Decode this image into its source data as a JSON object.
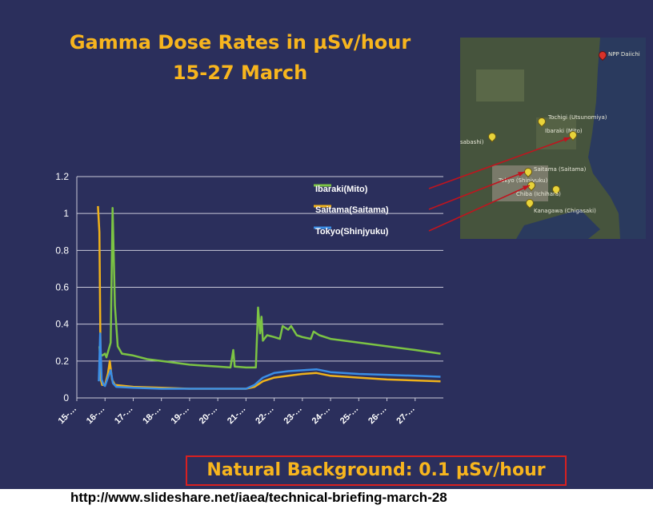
{
  "slide": {
    "title_line1": "Gamma Dose Rates in µSv/hour",
    "title_line2": "15-27 March",
    "callout": "Natural Background: 0.1 µSv/hour",
    "source_url": "http://www.slideshare.net/iaea/technical-briefing-march-28"
  },
  "map": {
    "labels": [
      {
        "id": "npp",
        "text": "NPP Daiichi"
      },
      {
        "id": "tochigi",
        "text": "Tochigi (Utsunomiya)"
      },
      {
        "id": "ibaraki",
        "text": "Ibaraki (Mito)"
      },
      {
        "id": "sabashi",
        "text": "sabashi)"
      },
      {
        "id": "saitama",
        "text": "Saitama (Saitama)"
      },
      {
        "id": "tokyo",
        "text": "Tokyo (Shinjyuku)"
      },
      {
        "id": "chiba",
        "text": "Chiba (Ichihara)"
      },
      {
        "id": "kanagawa",
        "text": "Kanagawa (Chigasaki)"
      }
    ]
  },
  "chart_data": {
    "type": "line",
    "title": "",
    "xlabel": "",
    "ylabel": "",
    "ylim": [
      0,
      1.2
    ],
    "yticks": [
      "0",
      "0.2",
      "0.4",
      "0.6",
      "0.8",
      "1",
      "1.2"
    ],
    "xticks": [
      "15-…",
      "16-…",
      "17-…",
      "18-…",
      "19-…",
      "20-…",
      "21-…",
      "22-…",
      "23-…",
      "24-…",
      "25-…",
      "26-…",
      "27-…"
    ],
    "grid": true,
    "legend_position": "top-right",
    "series": [
      {
        "name": "Ibaraki(Mito)",
        "color": "#7cc444",
        "points": [
          [
            15.8,
            0.28
          ],
          [
            15.82,
            0.24
          ],
          [
            15.9,
            0.23
          ],
          [
            16.0,
            0.24
          ],
          [
            16.05,
            0.22
          ],
          [
            16.2,
            0.3
          ],
          [
            16.27,
            1.03
          ],
          [
            16.35,
            0.5
          ],
          [
            16.45,
            0.28
          ],
          [
            16.6,
            0.24
          ],
          [
            17.0,
            0.23
          ],
          [
            17.5,
            0.21
          ],
          [
            18.0,
            0.2
          ],
          [
            19.0,
            0.18
          ],
          [
            20.0,
            0.17
          ],
          [
            20.45,
            0.165
          ],
          [
            20.55,
            0.26
          ],
          [
            20.6,
            0.17
          ],
          [
            21.0,
            0.165
          ],
          [
            21.35,
            0.165
          ],
          [
            21.43,
            0.49
          ],
          [
            21.5,
            0.35
          ],
          [
            21.55,
            0.44
          ],
          [
            21.6,
            0.31
          ],
          [
            21.75,
            0.34
          ],
          [
            22.0,
            0.33
          ],
          [
            22.2,
            0.32
          ],
          [
            22.3,
            0.39
          ],
          [
            22.5,
            0.37
          ],
          [
            22.6,
            0.39
          ],
          [
            22.8,
            0.34
          ],
          [
            23.0,
            0.33
          ],
          [
            23.3,
            0.32
          ],
          [
            23.4,
            0.36
          ],
          [
            23.6,
            0.34
          ],
          [
            24.0,
            0.32
          ],
          [
            25.0,
            0.3
          ],
          [
            26.0,
            0.28
          ],
          [
            27.0,
            0.26
          ],
          [
            27.9,
            0.24
          ]
        ]
      },
      {
        "name": "Saitama(Saitama)",
        "color": "#f0b21a",
        "points": [
          [
            15.75,
            1.04
          ],
          [
            15.8,
            0.9
          ],
          [
            15.85,
            0.1
          ],
          [
            15.9,
            0.07
          ],
          [
            16.0,
            0.07
          ],
          [
            16.1,
            0.13
          ],
          [
            16.17,
            0.2
          ],
          [
            16.25,
            0.1
          ],
          [
            16.35,
            0.07
          ],
          [
            17.0,
            0.06
          ],
          [
            18.0,
            0.055
          ],
          [
            19.0,
            0.05
          ],
          [
            20.0,
            0.05
          ],
          [
            21.0,
            0.05
          ],
          [
            21.3,
            0.06
          ],
          [
            21.6,
            0.09
          ],
          [
            22.0,
            0.11
          ],
          [
            22.5,
            0.12
          ],
          [
            23.0,
            0.13
          ],
          [
            23.5,
            0.135
          ],
          [
            24.0,
            0.12
          ],
          [
            25.0,
            0.11
          ],
          [
            26.0,
            0.1
          ],
          [
            27.0,
            0.095
          ],
          [
            27.9,
            0.09
          ]
        ]
      },
      {
        "name": "Tokyo(Shinjyuku)",
        "color": "#3a8ee6",
        "points": [
          [
            15.78,
            0.09
          ],
          [
            15.83,
            0.35
          ],
          [
            15.88,
            0.1
          ],
          [
            15.95,
            0.07
          ],
          [
            16.0,
            0.065
          ],
          [
            16.1,
            0.11
          ],
          [
            16.2,
            0.15
          ],
          [
            16.28,
            0.08
          ],
          [
            16.4,
            0.06
          ],
          [
            17.0,
            0.055
          ],
          [
            18.0,
            0.05
          ],
          [
            19.0,
            0.05
          ],
          [
            20.0,
            0.05
          ],
          [
            21.0,
            0.05
          ],
          [
            21.3,
            0.07
          ],
          [
            21.6,
            0.11
          ],
          [
            22.0,
            0.135
          ],
          [
            22.5,
            0.145
          ],
          [
            23.0,
            0.15
          ],
          [
            23.5,
            0.155
          ],
          [
            24.0,
            0.14
          ],
          [
            25.0,
            0.13
          ],
          [
            26.0,
            0.125
          ],
          [
            27.0,
            0.12
          ],
          [
            27.9,
            0.115
          ]
        ]
      }
    ]
  }
}
